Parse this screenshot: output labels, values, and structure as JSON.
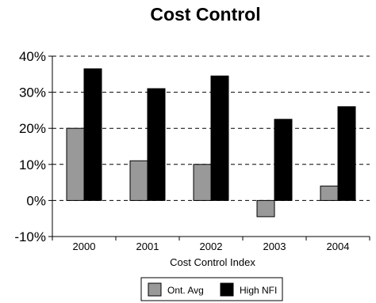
{
  "chart_data": {
    "type": "bar",
    "title": "Cost Control",
    "xlabel": "Cost Control Index",
    "ylabel": "",
    "categories": [
      "2000",
      "2001",
      "2002",
      "2003",
      "2004"
    ],
    "series": [
      {
        "name": "Ont. Avg",
        "values": [
          20,
          11,
          10,
          -4.5,
          4
        ],
        "color": "#999999"
      },
      {
        "name": "High NFI",
        "values": [
          36.5,
          31,
          34.5,
          22.5,
          26
        ],
        "color": "#000000"
      }
    ],
    "ylim": [
      -10,
      40
    ],
    "yticks": [
      -10,
      0,
      10,
      20,
      30,
      40
    ],
    "ytick_labels": [
      "-10%",
      "0%",
      "10%",
      "20%",
      "30%",
      "40%"
    ],
    "grid": "dashed horizontal",
    "legend": "bottom-center"
  }
}
